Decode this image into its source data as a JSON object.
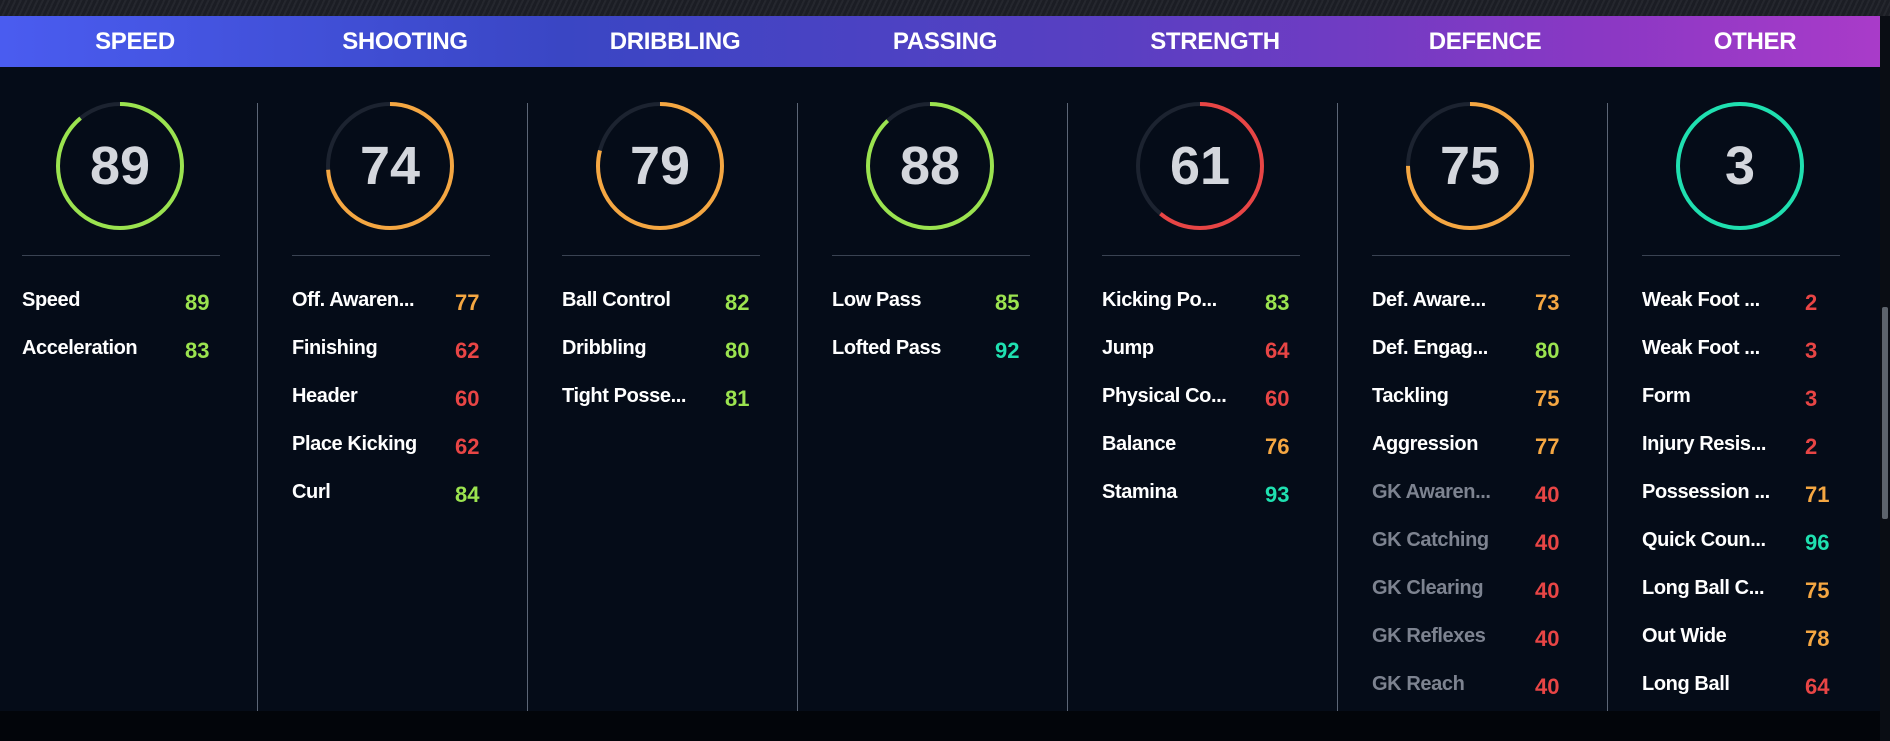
{
  "colors": {
    "green": "#9be34f",
    "orange": "#f5a742",
    "red": "#e84545",
    "teal": "#1fe0b0",
    "track": "#1c2330"
  },
  "categories": [
    {
      "title": "SPEED",
      "overall": "89",
      "ring_fill": 0.89,
      "ring_color": "green",
      "stats": [
        {
          "label": "Speed",
          "value": "89",
          "color": "green"
        },
        {
          "label": "Acceleration",
          "value": "83",
          "color": "green"
        }
      ]
    },
    {
      "title": "SHOOTING",
      "overall": "74",
      "ring_fill": 0.74,
      "ring_color": "orange",
      "stats": [
        {
          "label": "Off. Awaren...",
          "value": "77",
          "color": "orange"
        },
        {
          "label": "Finishing",
          "value": "62",
          "color": "red"
        },
        {
          "label": "Header",
          "value": "60",
          "color": "red"
        },
        {
          "label": "Place Kicking",
          "value": "62",
          "color": "red"
        },
        {
          "label": "Curl",
          "value": "84",
          "color": "green"
        }
      ]
    },
    {
      "title": "DRIBBLING",
      "overall": "79",
      "ring_fill": 0.79,
      "ring_color": "orange",
      "stats": [
        {
          "label": "Ball Control",
          "value": "82",
          "color": "green"
        },
        {
          "label": "Dribbling",
          "value": "80",
          "color": "green"
        },
        {
          "label": "Tight Posse...",
          "value": "81",
          "color": "green"
        }
      ]
    },
    {
      "title": "PASSING",
      "overall": "88",
      "ring_fill": 0.88,
      "ring_color": "green",
      "stats": [
        {
          "label": "Low Pass",
          "value": "85",
          "color": "green"
        },
        {
          "label": "Lofted Pass",
          "value": "92",
          "color": "teal"
        }
      ]
    },
    {
      "title": "STRENGTH",
      "overall": "61",
      "ring_fill": 0.61,
      "ring_color": "red",
      "stats": [
        {
          "label": "Kicking Po...",
          "value": "83",
          "color": "green"
        },
        {
          "label": "Jump",
          "value": "64",
          "color": "red"
        },
        {
          "label": "Physical Co...",
          "value": "60",
          "color": "red"
        },
        {
          "label": "Balance",
          "value": "76",
          "color": "orange"
        },
        {
          "label": "Stamina",
          "value": "93",
          "color": "teal"
        }
      ]
    },
    {
      "title": "DEFENCE",
      "overall": "75",
      "ring_fill": 0.75,
      "ring_color": "orange",
      "stats": [
        {
          "label": "Def. Aware...",
          "value": "73",
          "color": "orange"
        },
        {
          "label": "Def. Engag...",
          "value": "80",
          "color": "green"
        },
        {
          "label": "Tackling",
          "value": "75",
          "color": "orange"
        },
        {
          "label": "Aggression",
          "value": "77",
          "color": "orange"
        },
        {
          "label": "GK Awaren...",
          "value": "40",
          "color": "red",
          "dim": true
        },
        {
          "label": "GK Catching",
          "value": "40",
          "color": "red",
          "dim": true
        },
        {
          "label": "GK Clearing",
          "value": "40",
          "color": "red",
          "dim": true
        },
        {
          "label": "GK Reflexes",
          "value": "40",
          "color": "red",
          "dim": true
        },
        {
          "label": "GK Reach",
          "value": "40",
          "color": "red",
          "dim": true
        }
      ]
    },
    {
      "title": "OTHER",
      "overall": "3",
      "ring_fill": 1.0,
      "ring_color": "teal",
      "stats": [
        {
          "label": "Weak Foot ...",
          "value": "2",
          "color": "red"
        },
        {
          "label": "Weak Foot ...",
          "value": "3",
          "color": "red"
        },
        {
          "label": "Form",
          "value": "3",
          "color": "red"
        },
        {
          "label": "Injury Resis...",
          "value": "2",
          "color": "red"
        },
        {
          "label": "Possession ...",
          "value": "71",
          "color": "orange"
        },
        {
          "label": "Quick Coun...",
          "value": "96",
          "color": "teal"
        },
        {
          "label": "Long Ball C...",
          "value": "75",
          "color": "orange"
        },
        {
          "label": "Out Wide",
          "value": "78",
          "color": "orange"
        },
        {
          "label": "Long Ball",
          "value": "64",
          "color": "red"
        }
      ]
    }
  ]
}
